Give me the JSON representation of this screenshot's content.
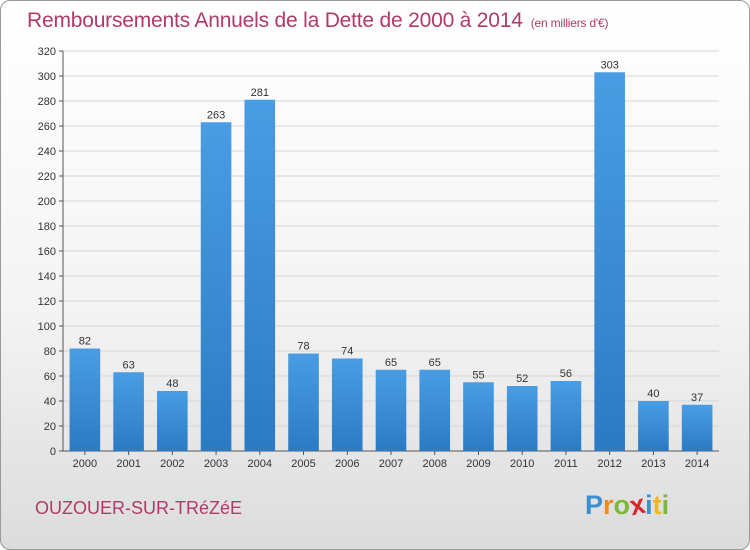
{
  "header": {
    "title": "Remboursements Annuels de la Dette de 2000 à 2014",
    "unit": "(en milliers d'€)"
  },
  "footer": {
    "town": "OUZOUER-SUR-TRéZéE",
    "logo": {
      "letters": [
        "P",
        "r",
        "o",
        "x",
        "i",
        "t",
        "i"
      ],
      "colors": [
        "#3a8fd1",
        "#f08a1c",
        "#7fb73a",
        "#d8262e",
        "#3a8fd1",
        "#f0b81c",
        "#7fb73a"
      ]
    }
  },
  "chart_data": {
    "type": "bar",
    "title": "Remboursements Annuels de la Dette de 2000 à 2014",
    "subtitle": "(en milliers d'€)",
    "xlabel": "",
    "ylabel": "",
    "categories": [
      "2000",
      "2001",
      "2002",
      "2003",
      "2004",
      "2005",
      "2006",
      "2007",
      "2008",
      "2009",
      "2010",
      "2011",
      "2012",
      "2013",
      "2014"
    ],
    "values": [
      82,
      63,
      48,
      263,
      281,
      78,
      74,
      65,
      65,
      55,
      52,
      56,
      303,
      40,
      37
    ],
    "ylim": [
      0,
      320
    ],
    "yticks": [
      0,
      20,
      40,
      60,
      80,
      100,
      120,
      140,
      160,
      180,
      200,
      220,
      240,
      260,
      280,
      300,
      320
    ],
    "grid": true,
    "bar_color": "#4a9de2",
    "bar_color_dark": "#2b7bc4"
  }
}
